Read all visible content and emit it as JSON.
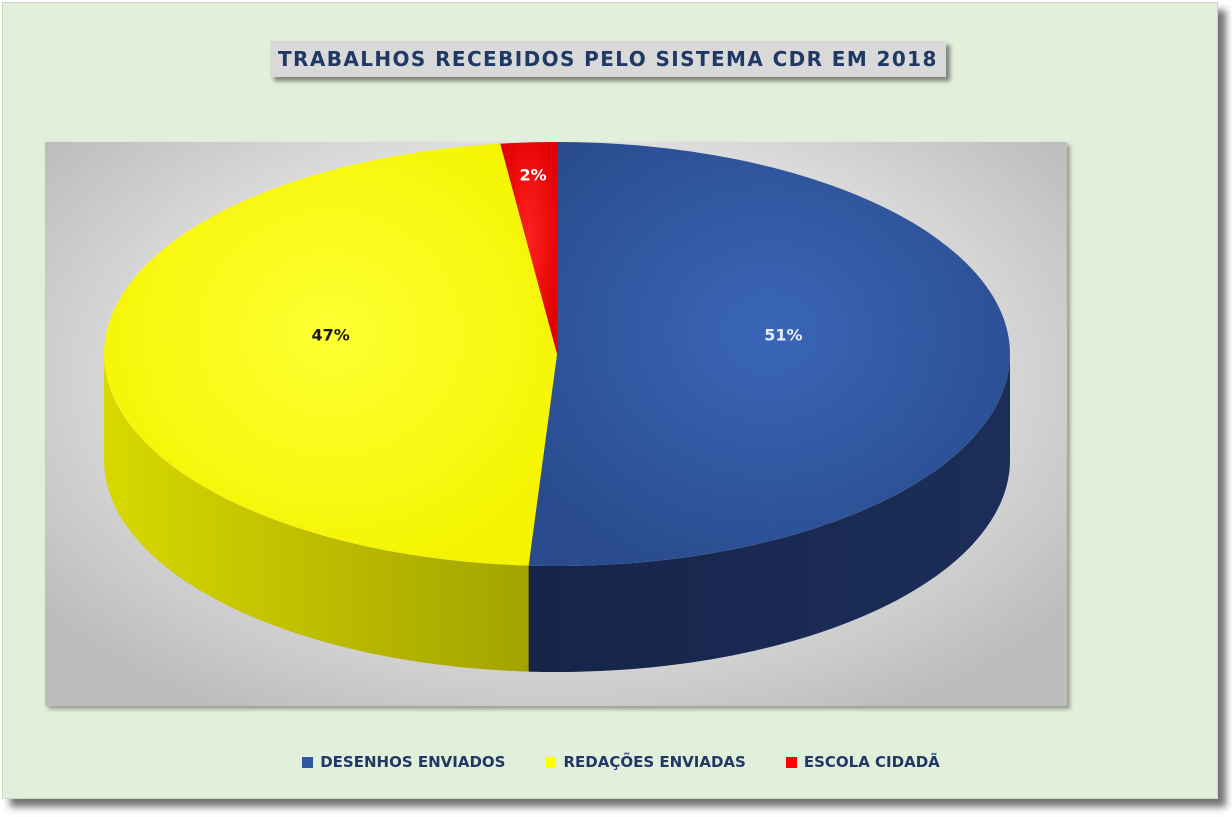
{
  "chart_data": {
    "type": "pie",
    "title": "TRABALHOS RECEBIDOS PELO SISTEMA CDR EM 2018",
    "categories": [
      "DESENHOS ENVIADOS",
      "REDAÇÕES ENVIADAS",
      "ESCOLA CIDADÃ"
    ],
    "values": [
      51,
      47,
      2
    ],
    "data_labels": [
      "51%",
      "47%",
      "2%"
    ],
    "colors": [
      "#2f56a0",
      "#ffff00",
      "#ff0000"
    ],
    "label_colors": [
      "#e8eefc",
      "#1a1a1a",
      "#ffffff"
    ],
    "legend_position": "bottom",
    "style": "3d-pie"
  }
}
